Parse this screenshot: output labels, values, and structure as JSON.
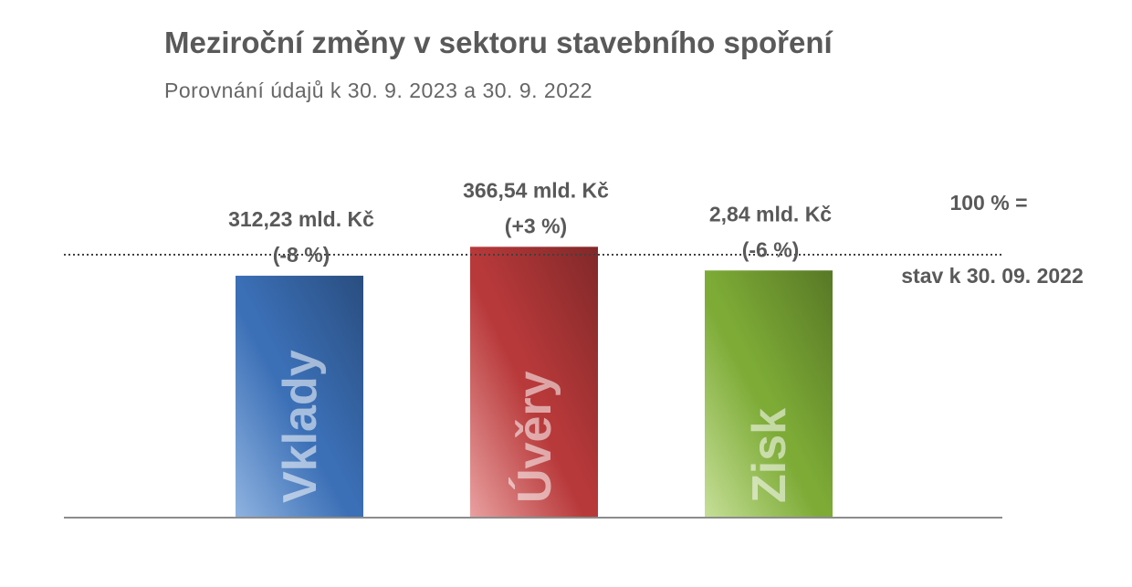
{
  "chart_data": {
    "type": "bar",
    "title": "Meziroční změny v sektoru stavebního spoření",
    "subtitle": "Porovnání údajů k 30. 9. 2023 a 30. 9. 2022",
    "categories": [
      "Vklady",
      "Úvěry",
      "Zisk"
    ],
    "values": [
      92,
      103,
      94
    ],
    "value_unit": "% of state at 30. 09. 2022",
    "labels": [
      {
        "amount": "312,23 mld. Kč",
        "change": "(-8 %)"
      },
      {
        "amount": "366,54 mld. Kč",
        "change": "(+3 %)"
      },
      {
        "amount": "2,84 mld. Kč",
        "change": "(-6 %)"
      }
    ],
    "colors": [
      "#3b6fb6",
      "#b8393a",
      "#7dab36"
    ],
    "colors_light": [
      "#8fb3e0",
      "#e9a0a0",
      "#c6df98"
    ],
    "reference": {
      "value": 100,
      "line_style": "dotted",
      "label_top": "100 % =",
      "label_bottom": "stav k 30. 09. 2022"
    },
    "ylim": [
      0,
      103
    ],
    "grid": false,
    "legend": "none"
  }
}
